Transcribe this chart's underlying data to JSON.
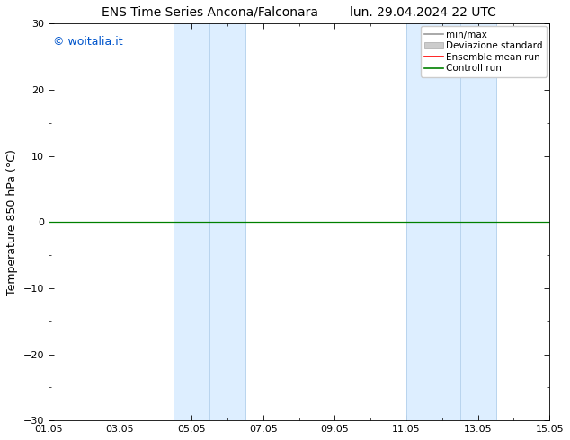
{
  "title_left": "ENS Time Series Ancona/Falconara",
  "title_right": "lun. 29.04.2024 22 UTC",
  "ylabel": "Temperature 850 hPa (°C)",
  "watermark": "© woitalia.it",
  "watermark_color": "#0055cc",
  "ylim": [
    -30,
    30
  ],
  "yticks": [
    -30,
    -20,
    -10,
    0,
    10,
    20,
    30
  ],
  "xtick_labels": [
    "01.05",
    "03.05",
    "05.05",
    "07.05",
    "09.05",
    "11.05",
    "13.05",
    "15.05"
  ],
  "xtick_positions": [
    0,
    2,
    4,
    6,
    8,
    10,
    12,
    14
  ],
  "xlim": [
    0,
    14
  ],
  "background_color": "#ffffff",
  "plot_bg_color": "#ffffff",
  "shaded_bands": [
    {
      "x_start": 3.5,
      "x_end": 5.5,
      "color": "#ddeeff"
    },
    {
      "x_start": 10.0,
      "x_end": 12.5,
      "color": "#ddeeff"
    }
  ],
  "shaded_band_vlines": [
    {
      "x": 3.5,
      "color": "#b8d4ee",
      "lw": 0.7
    },
    {
      "x": 4.5,
      "color": "#b8d4ee",
      "lw": 0.7
    },
    {
      "x": 5.5,
      "color": "#b8d4ee",
      "lw": 0.7
    },
    {
      "x": 10.0,
      "color": "#b8d4ee",
      "lw": 0.7
    },
    {
      "x": 11.5,
      "color": "#b8d4ee",
      "lw": 0.7
    },
    {
      "x": 12.5,
      "color": "#b8d4ee",
      "lw": 0.7
    }
  ],
  "control_run_y": 0,
  "control_run_color": "#008000",
  "ensemble_mean_color": "#ff0000",
  "minmax_color": "#999999",
  "stddev_color": "#cccccc",
  "legend_labels": [
    "min/max",
    "Deviazione standard",
    "Ensemble mean run",
    "Controll run"
  ],
  "legend_line_colors": [
    "#999999",
    "#cccccc",
    "#ff0000",
    "#008000"
  ],
  "title_fontsize": 10,
  "axis_label_fontsize": 9,
  "tick_fontsize": 8,
  "legend_fontsize": 7.5,
  "watermark_fontsize": 9
}
